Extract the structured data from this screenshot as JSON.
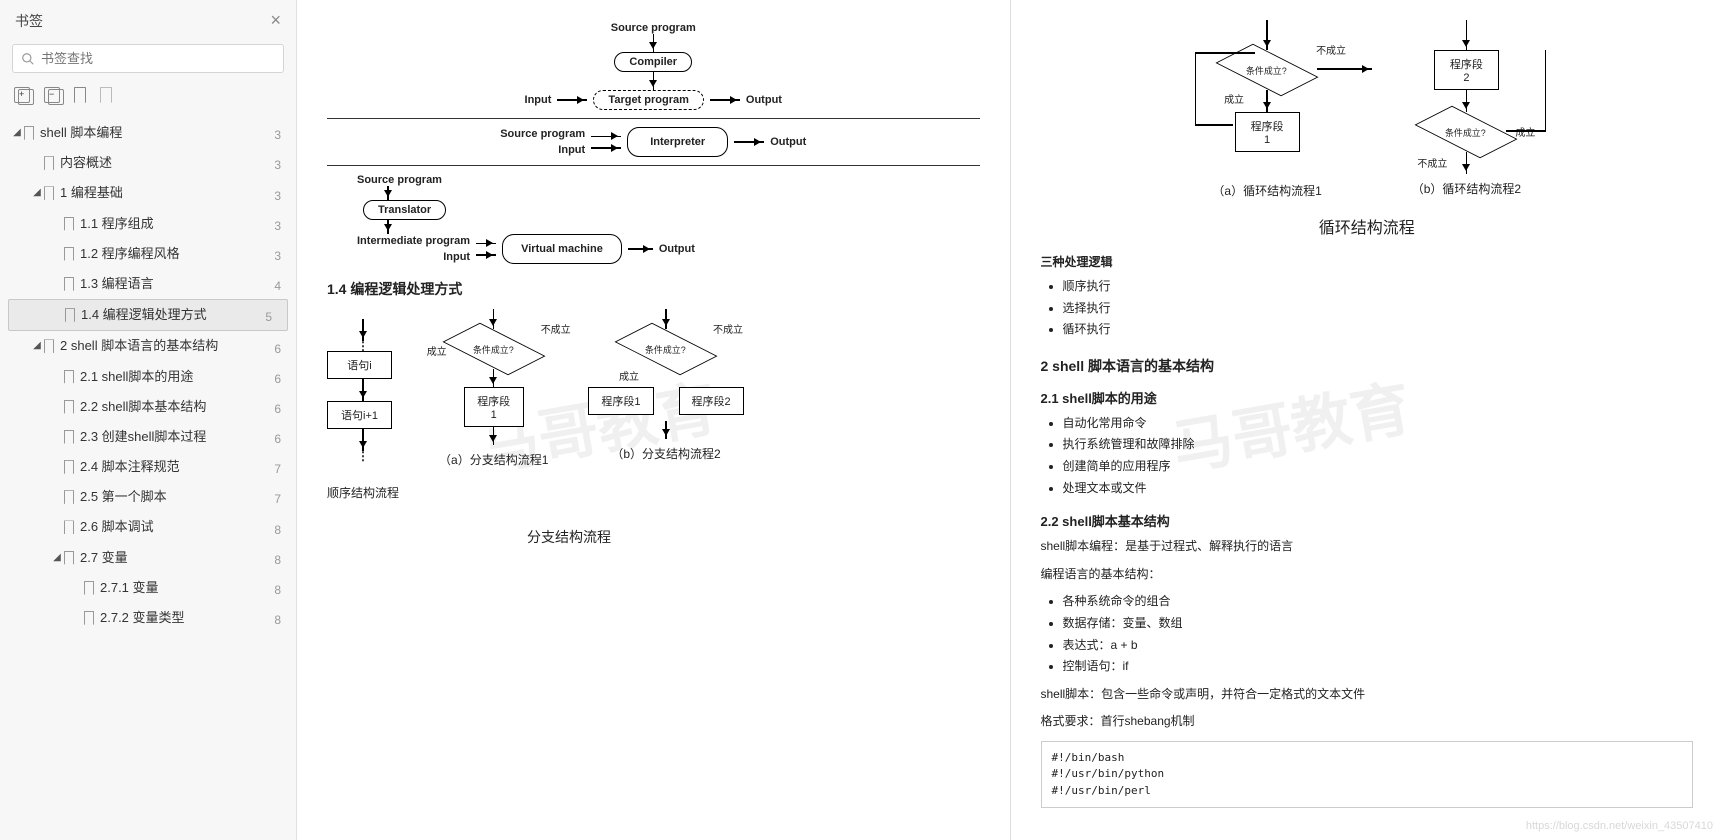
{
  "sidebar": {
    "title": "书签",
    "search_placeholder": "书签查找",
    "tree": [
      {
        "lv": 0,
        "exp": true,
        "label": "shell 脚本编程",
        "pg": "3"
      },
      {
        "lv": 1,
        "exp": false,
        "label": "内容概述",
        "pg": "3"
      },
      {
        "lv": 1,
        "exp": true,
        "label": "1 编程基础",
        "pg": "3"
      },
      {
        "lv": 2,
        "exp": false,
        "label": "1.1 程序组成",
        "pg": "3"
      },
      {
        "lv": 2,
        "exp": false,
        "label": "1.2 程序编程风格",
        "pg": "3"
      },
      {
        "lv": 2,
        "exp": false,
        "label": "1.3 编程语言",
        "pg": "4"
      },
      {
        "lv": 2,
        "exp": false,
        "label": "1.4 编程逻辑处理方式",
        "pg": "5",
        "active": true
      },
      {
        "lv": 1,
        "exp": true,
        "label": "2 shell 脚本语言的基本结构",
        "pg": "6"
      },
      {
        "lv": 2,
        "exp": false,
        "label": "2.1 shell脚本的用途",
        "pg": "6"
      },
      {
        "lv": 2,
        "exp": false,
        "label": "2.2 shell脚本基本结构",
        "pg": "6"
      },
      {
        "lv": 2,
        "exp": false,
        "label": "2.3 创建shell脚本过程",
        "pg": "6"
      },
      {
        "lv": 2,
        "exp": false,
        "label": "2.4 脚本注释规范",
        "pg": "7"
      },
      {
        "lv": 2,
        "exp": false,
        "label": "2.5 第一个脚本",
        "pg": "7"
      },
      {
        "lv": 2,
        "exp": false,
        "label": "2.6 脚本调试",
        "pg": "8"
      },
      {
        "lv": 2,
        "exp": true,
        "label": "2.7 变量",
        "pg": "8"
      },
      {
        "lv": 3,
        "exp": false,
        "label": "2.7.1 变量",
        "pg": "8"
      },
      {
        "lv": 3,
        "exp": false,
        "label": "2.7.2 变量类型",
        "pg": "8"
      }
    ]
  },
  "page_left": {
    "compiler_flow": {
      "n1": "Source program",
      "n2": "Compiler",
      "n3": "Target program",
      "in": "Input",
      "out": "Output"
    },
    "interpreter_flow": {
      "n1": "Source program",
      "n2": "Interpreter",
      "in": "Input",
      "out": "Output"
    },
    "vm_flow": {
      "n1": "Source program",
      "n2": "Translator",
      "n3": "Intermediate program",
      "n4": "Virtual machine",
      "in": "Input",
      "out": "Output"
    },
    "section_title": "1.4 编程逻辑处理方式",
    "seq": {
      "s1": "语句i",
      "s2": "语句i+1",
      "cap": "顺序结构流程"
    },
    "branch1": {
      "cond": "条件成立?",
      "yes": "成立",
      "no": "不成立",
      "b1": "程序段1",
      "cap": "（a）分支结构流程1"
    },
    "branch2": {
      "cond": "条件成立?",
      "yes": "成立",
      "no": "不成立",
      "b1": "程序段1",
      "b2": "程序段2",
      "cap": "（b）分支结构流程2"
    },
    "branch_cap": "分支结构流程"
  },
  "page_right": {
    "loop1": {
      "cond": "条件成立?",
      "yes": "成立",
      "no": "不成立",
      "b": "程序段1",
      "cap": "（a）循环结构流程1"
    },
    "loop2": {
      "cond": "条件成立?",
      "yes": "成立",
      "no": "不成立",
      "b": "程序段2",
      "cap": "（b）循环结构流程2"
    },
    "loop_cap": "循环结构流程",
    "three_title": "三种处理逻辑",
    "three": [
      "顺序执行",
      "选择执行",
      "循环执行"
    ],
    "h2": "2 shell 脚本语言的基本结构",
    "h21": "2.1 shell脚本的用途",
    "uses": [
      "自动化常用命令",
      "执行系统管理和故障排除",
      "创建简单的应用程序",
      "处理文本或文件"
    ],
    "h22": "2.2 shell脚本基本结构",
    "p1": "shell脚本编程：是基于过程式、解释执行的语言",
    "p2": "编程语言的基本结构：",
    "struct": [
      "各种系统命令的组合",
      "数据存储：变量、数组",
      "表达式：a + b",
      "控制语句：if"
    ],
    "p3": "shell脚本：包含一些命令或声明，并符合一定格式的文本文件",
    "p4": "格式要求：首行shebang机制",
    "code": [
      "#!/bin/bash",
      "#!/usr/bin/python",
      "#!/usr/bin/perl"
    ],
    "url": "https://blog.csdn.net/weixin_43507410"
  }
}
